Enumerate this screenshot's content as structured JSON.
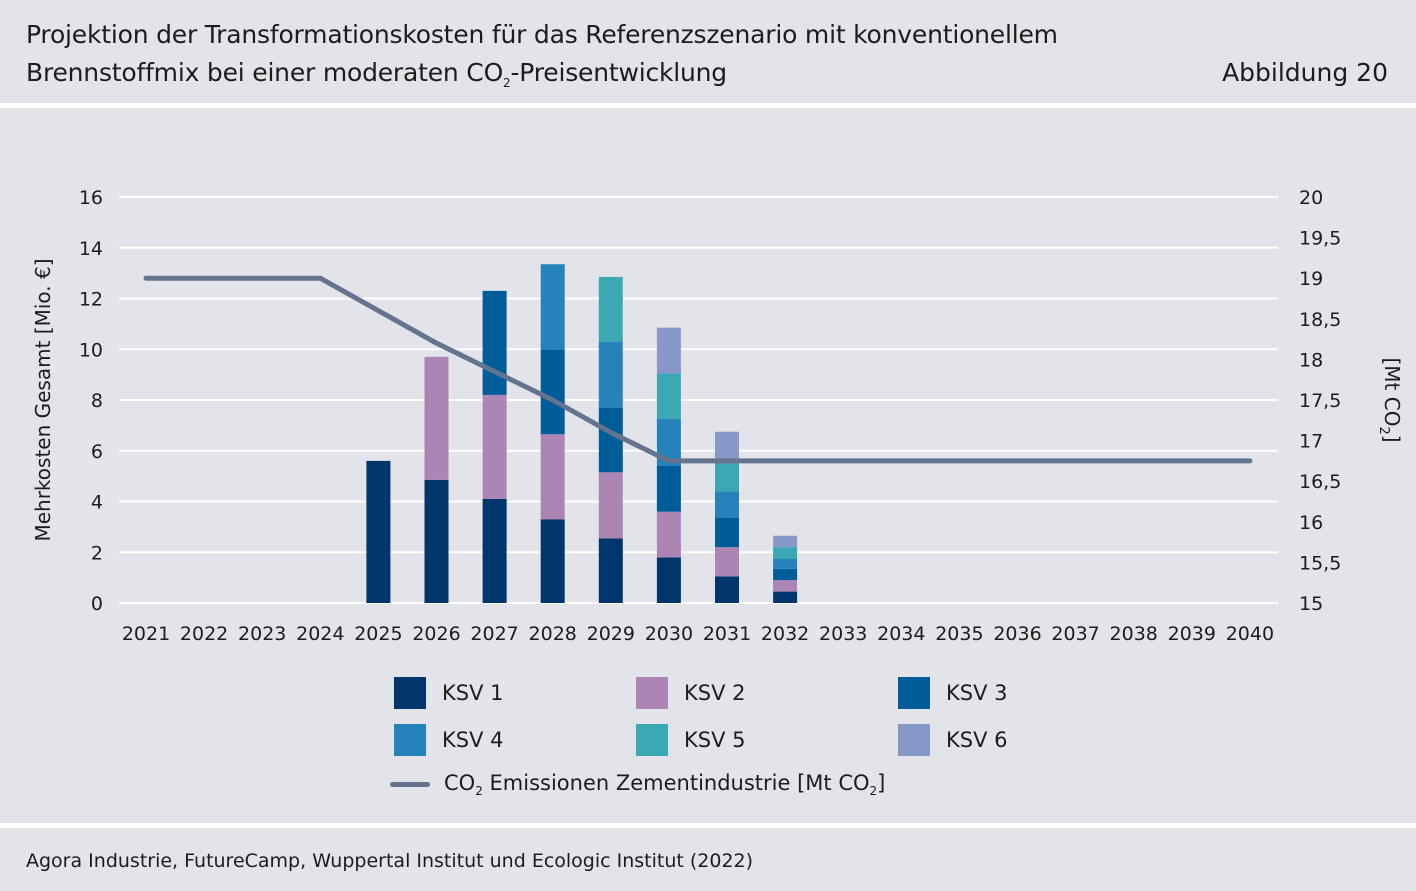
{
  "header": {
    "title_line1": "Projektion der Transformationskosten für das Referenzszenario mit konventionellem",
    "title_line2_pre": "Brennstoffmix bei einer moderaten CO",
    "title_line2_sub": "2",
    "title_line2_post": "-Preisentwicklung",
    "figure_label": "Abbildung 20"
  },
  "source": "Agora Industrie, FutureCamp, Wuppertal Institut und Ecologic Institut (2022)",
  "chart_data": {
    "type": "bar",
    "stacked": true,
    "categories": [
      "2021",
      "2022",
      "2023",
      "2024",
      "2025",
      "2026",
      "2027",
      "2028",
      "2029",
      "2030",
      "2031",
      "2032",
      "2033",
      "2034",
      "2035",
      "2036",
      "2037",
      "2038",
      "2039",
      "2040"
    ],
    "ylabel": "Mehrkosten Gesamt [Mio. €]",
    "y2label_pre": "[Mt CO",
    "y2label_sub": "2",
    "y2label_post": "]",
    "ylim": [
      0,
      16
    ],
    "yticks": [
      "0",
      "2",
      "4",
      "6",
      "8",
      "10",
      "12",
      "14",
      "16"
    ],
    "y2lim": [
      15,
      20
    ],
    "y2ticks": [
      "15",
      "15,5",
      "16",
      "16,5",
      "17",
      "17,5",
      "18",
      "18,5",
      "19",
      "19,5",
      "20"
    ],
    "grid": true,
    "series": [
      {
        "name": "KSV 1",
        "color": "#00366b",
        "values": [
          0,
          0,
          0,
          0,
          5.6,
          4.85,
          4.1,
          3.3,
          2.55,
          1.8,
          1.05,
          0.45,
          0,
          0,
          0,
          0,
          0,
          0,
          0,
          0
        ]
      },
      {
        "name": "KSV 2",
        "color": "#ad85b5",
        "values": [
          0,
          0,
          0,
          0,
          0,
          4.85,
          4.1,
          3.35,
          2.6,
          1.8,
          1.15,
          0.45,
          0,
          0,
          0,
          0,
          0,
          0,
          0,
          0
        ]
      },
      {
        "name": "KSV 3",
        "color": "#005d99",
        "values": [
          0,
          0,
          0,
          0,
          0,
          0,
          4.1,
          3.35,
          2.55,
          1.8,
          1.15,
          0.45,
          0,
          0,
          0,
          0,
          0,
          0,
          0,
          0
        ]
      },
      {
        "name": "KSV 4",
        "color": "#2582bb",
        "values": [
          0,
          0,
          0,
          0,
          0,
          0,
          0,
          3.35,
          2.6,
          1.85,
          1.05,
          0.4,
          0,
          0,
          0,
          0,
          0,
          0,
          0,
          0
        ]
      },
      {
        "name": "KSV 5",
        "color": "#3ba9b3",
        "values": [
          0,
          0,
          0,
          0,
          0,
          0,
          0,
          0,
          2.55,
          1.8,
          1.1,
          0.45,
          0,
          0,
          0,
          0,
          0,
          0,
          0,
          0
        ]
      },
      {
        "name": "KSV 6",
        "color": "#8798c8",
        "values": [
          0,
          0,
          0,
          0,
          0,
          0,
          0,
          0,
          0,
          1.8,
          1.25,
          0.45,
          0,
          0,
          0,
          0,
          0,
          0,
          0,
          0
        ]
      }
    ],
    "line": {
      "name_pre": "CO",
      "name_sub": "2",
      "name_mid": " Emissionen Zementindustrie [Mt CO",
      "name_sub2": "2",
      "name_post": "]",
      "color": "#64748f",
      "axis": "right",
      "values": [
        19,
        19,
        19,
        19,
        18.6,
        18.2,
        17.85,
        17.5,
        17.1,
        16.75,
        16.75,
        16.75,
        16.75,
        16.75,
        16.75,
        16.75,
        16.75,
        16.75,
        16.75,
        16.75
      ]
    }
  }
}
